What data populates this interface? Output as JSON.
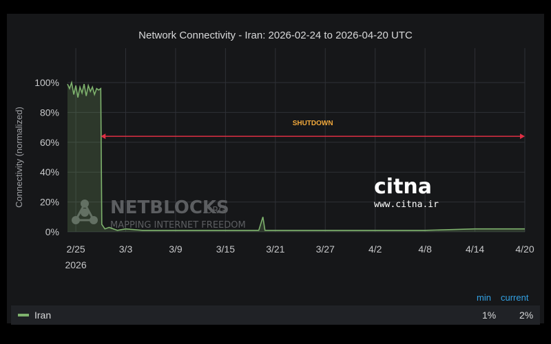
{
  "chart_data": {
    "type": "area",
    "title": "Network Connectivity - Iran: 2026-02-24 to 2026-04-20 UTC",
    "ylabel": "Connectivity (normalized)",
    "xlabel": "",
    "x_ticks": [
      "2/25",
      "3/3",
      "3/9",
      "3/15",
      "3/21",
      "3/27",
      "4/2",
      "4/8",
      "4/14",
      "4/20"
    ],
    "x_tick_sub": "2026",
    "y_ticks": [
      "0%",
      "20%",
      "40%",
      "60%",
      "80%",
      "100%"
    ],
    "xlim": [
      "2026-02-24",
      "2026-04-20"
    ],
    "ylim": [
      0,
      100
    ],
    "grid": true,
    "series": [
      {
        "name": "Iran",
        "color": "#7eb26d",
        "points": [
          [
            "2026-02-24",
            99
          ],
          [
            "2026-02-24T06",
            96
          ],
          [
            "2026-02-24T12",
            100
          ],
          [
            "2026-02-24T18",
            92
          ],
          [
            "2026-02-25",
            98
          ],
          [
            "2026-02-25T06",
            90
          ],
          [
            "2026-02-25T12",
            97
          ],
          [
            "2026-02-25T18",
            93
          ],
          [
            "2026-02-26",
            99
          ],
          [
            "2026-02-26T06",
            91
          ],
          [
            "2026-02-26T12",
            98
          ],
          [
            "2026-02-26T18",
            94
          ],
          [
            "2026-02-27",
            97
          ],
          [
            "2026-02-27T06",
            92
          ],
          [
            "2026-02-27T12",
            96
          ],
          [
            "2026-02-27T18",
            95
          ],
          [
            "2026-02-28",
            96
          ],
          [
            "2026-02-28T03",
            5
          ],
          [
            "2026-02-28T12",
            2
          ],
          [
            "2026-03-01",
            3
          ],
          [
            "2026-03-02",
            1
          ],
          [
            "2026-03-03",
            2
          ],
          [
            "2026-03-05",
            1
          ],
          [
            "2026-03-08",
            1
          ],
          [
            "2026-03-12",
            1
          ],
          [
            "2026-03-16",
            1
          ],
          [
            "2026-03-19",
            1
          ],
          [
            "2026-03-19T12",
            10
          ],
          [
            "2026-03-19T18",
            1
          ],
          [
            "2026-03-22",
            1
          ],
          [
            "2026-03-27",
            1
          ],
          [
            "2026-04-02",
            1
          ],
          [
            "2026-04-08",
            1
          ],
          [
            "2026-04-14",
            2
          ],
          [
            "2026-04-20",
            2
          ]
        ]
      }
    ],
    "annotations": [
      {
        "text": "SHUTDOWN",
        "x_start": "2026-02-28",
        "x_end": "2026-04-20",
        "y": 64,
        "color": "#e02f44"
      }
    ]
  },
  "watermarks": {
    "netblocks_name": "NETBLOCKS",
    "netblocks_suffix": ".ORG",
    "netblocks_tagline": "MAPPING INTERNET FREEDOM",
    "citna_logo": "citna",
    "citna_url": "www.citna.ir"
  },
  "legend": {
    "min_label": "min",
    "current_label": "current",
    "series_name": "Iran",
    "min_value": "1%",
    "current_value": "2%"
  }
}
